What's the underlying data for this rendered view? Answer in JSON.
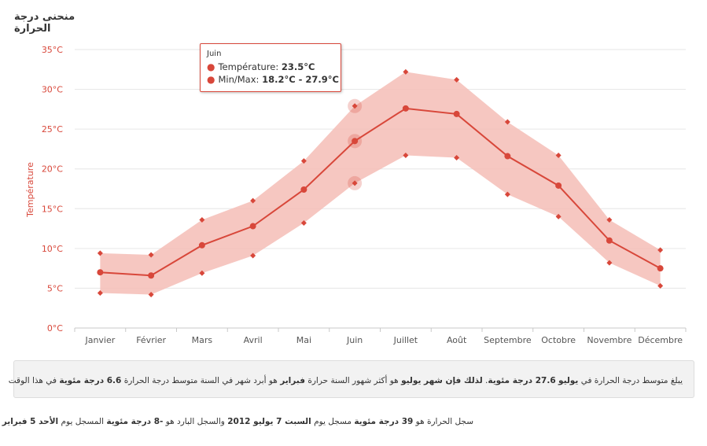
{
  "page": {
    "heading": "منحنى درجة الحرارة"
  },
  "tooltip": {
    "title": "Juin",
    "temp_label": "Température:",
    "temp_value": "23.5°C",
    "range_label": "Min/Max:",
    "range_value": "18.2°C - 27.9°C"
  },
  "info": {
    "p1": "يبلغ متوسط درجة الحرارة في",
    "month_hot": "يوليو",
    "val_hot": "27.6 درجة مئوية",
    "p2": ".",
    "so": "لذلك فإن شهر يوليو",
    "p3": "هو أكثر شهور السنة حرارة",
    "month_cold": "فبراير",
    "p4": "هو أبرد شهر في السنة متوسط درجة الحرارة",
    "val_cold": "6.6 درجة مئوية",
    "p5": "في هذا الوقت"
  },
  "records": {
    "p1": "سجل الحرارة هو",
    "hot_val": "39 درجة مئوية",
    "p2": "مسجل يوم",
    "hot_date": "السبت 7 يوليو 2012",
    "p3": "والسجل البارد هو",
    "cold_val": "-8 درجة مئوية",
    "p4": "المسجل يوم",
    "cold_date": "الأحد 5 فبراير 2012",
    "p5": "."
  },
  "colors": {
    "series": "#d8473a",
    "band": "#f4bdb6",
    "grid": "#e6e6e6"
  },
  "chart_data": {
    "type": "line",
    "categories": [
      "Janvier",
      "Février",
      "Mars",
      "Avril",
      "Mai",
      "Juin",
      "Juillet",
      "Août",
      "Septembre",
      "Octobre",
      "Novembre",
      "Décembre"
    ],
    "series": [
      {
        "values": [
          7.0,
          6.6,
          10.4,
          12.8,
          17.4,
          23.5,
          27.6,
          26.9,
          21.6,
          17.9,
          11.0,
          7.5
        ]
      }
    ],
    "range": {
      "min": [
        4.4,
        4.2,
        6.9,
        9.1,
        13.2,
        18.2,
        21.7,
        21.4,
        16.8,
        14.0,
        8.2,
        5.3
      ],
      "max": [
        9.4,
        9.2,
        13.6,
        16.0,
        21.0,
        27.9,
        32.2,
        31.2,
        25.9,
        21.7,
        13.6,
        9.8
      ]
    },
    "ylabel": "Température",
    "ylim": [
      0,
      35
    ],
    "yticks": [
      "0°C",
      "5°C",
      "10°C",
      "15°C",
      "20°C",
      "25°C",
      "30°C",
      "35°C"
    ],
    "grid": true,
    "legend": "none",
    "highlighted": "Juin"
  }
}
